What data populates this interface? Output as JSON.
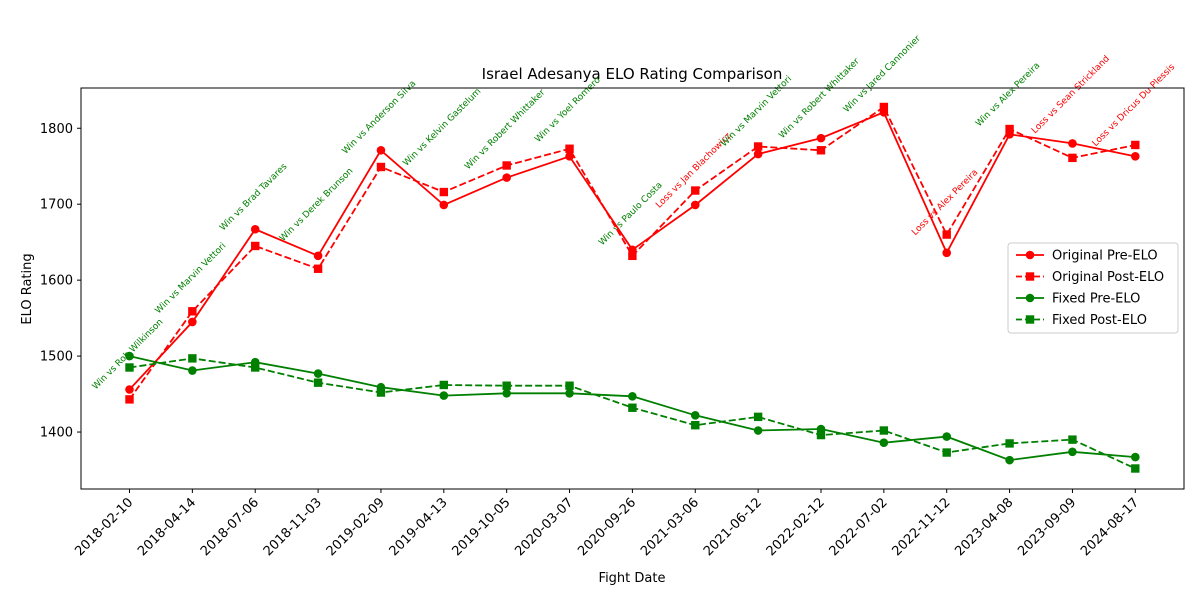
{
  "chart_data": {
    "type": "line",
    "title": "Israel Adesanya ELO Rating Comparison",
    "xlabel": "Fight Date",
    "ylabel": "ELO Rating",
    "ylim": [
      1325,
      1853
    ],
    "yticks": [
      1400,
      1500,
      1600,
      1700,
      1800
    ],
    "grid": false,
    "legend_position": "right",
    "categories": [
      "2018-02-10",
      "2018-04-14",
      "2018-07-06",
      "2018-11-03",
      "2019-02-09",
      "2019-04-13",
      "2019-10-05",
      "2020-03-07",
      "2020-09-26",
      "2021-03-06",
      "2021-06-12",
      "2022-02-12",
      "2022-07-02",
      "2022-11-12",
      "2023-04-08",
      "2023-09-09",
      "2024-08-17"
    ],
    "series": [
      {
        "name": "Original Pre-ELO",
        "color": "#ff0000",
        "dash": "solid",
        "marker": "circle",
        "values": [
          1456,
          1545,
          1667,
          1632,
          1771,
          1699,
          1735,
          1763,
          1640,
          1699,
          1766,
          1787,
          1821,
          1636,
          1792,
          1780,
          1763
        ]
      },
      {
        "name": "Original Post-ELO",
        "color": "#ff0000",
        "dash": "dashed",
        "marker": "square",
        "values": [
          1443,
          1559,
          1645,
          1615,
          1749,
          1716,
          1751,
          1773,
          1632,
          1718,
          1776,
          1771,
          1828,
          1660,
          1799,
          1761,
          1778
        ]
      },
      {
        "name": "Fixed Pre-ELO",
        "color": "#008000",
        "dash": "solid",
        "marker": "circle",
        "values": [
          1500,
          1481,
          1492,
          1477,
          1459,
          1448,
          1451,
          1451,
          1447,
          1422,
          1402,
          1404,
          1386,
          1394,
          1363,
          1374,
          1367
        ]
      },
      {
        "name": "Fixed Post-ELO",
        "color": "#008000",
        "dash": "dashed",
        "marker": "square",
        "values": [
          1485,
          1497,
          1485,
          1465,
          1452,
          1462,
          1461,
          1461,
          1432,
          1409,
          1420,
          1396,
          1402,
          1373,
          1385,
          1390,
          1352
        ]
      }
    ],
    "annotations": [
      {
        "text": "Win vs Rob Wilkinson",
        "result": "win",
        "color": "#008000",
        "y": 1500
      },
      {
        "text": "Win vs Marvin Vettori",
        "result": "win",
        "color": "#008000",
        "y": 1600
      },
      {
        "text": "Win vs Brad Tavares",
        "result": "win",
        "color": "#008000",
        "y": 1707
      },
      {
        "text": "Win vs Derek Brunson",
        "result": "win",
        "color": "#008000",
        "y": 1697
      },
      {
        "text": "Win vs Anderson Silva",
        "result": "win",
        "color": "#008000",
        "y": 1812
      },
      {
        "text": "Win vs Kelvin Gastelum",
        "result": "win",
        "color": "#008000",
        "y": 1799
      },
      {
        "text": "Win vs Robert Whittaker",
        "result": "win",
        "color": "#008000",
        "y": 1796
      },
      {
        "text": "Win vs Yoel Romero",
        "result": "win",
        "color": "#008000",
        "y": 1822
      },
      {
        "text": "Win vs Paulo Costa",
        "result": "win",
        "color": "#008000",
        "y": 1685
      },
      {
        "text": "Loss vs Jan Blachowicz",
        "result": "loss",
        "color": "#ff0000",
        "y": 1742
      },
      {
        "text": "Win vs Marvin Vettori",
        "result": "win",
        "color": "#008000",
        "y": 1820
      },
      {
        "text": "Win vs Robert Whittaker",
        "result": "win",
        "color": "#008000",
        "y": 1837
      },
      {
        "text": "Win vs Jared Cannonier",
        "result": "win",
        "color": "#008000",
        "y": 1869
      },
      {
        "text": "Loss vs Alex Pereira",
        "result": "loss",
        "color": "#ff0000",
        "y": 1700
      },
      {
        "text": "Win vs Alex Pereira",
        "result": "win",
        "color": "#008000",
        "y": 1842
      },
      {
        "text": "Loss vs Sean Strickland",
        "result": "loss",
        "color": "#ff0000",
        "y": 1842
      },
      {
        "text": "Loss vs Dricus Du Plessis",
        "result": "loss",
        "color": "#ff0000",
        "y": 1828
      }
    ]
  }
}
